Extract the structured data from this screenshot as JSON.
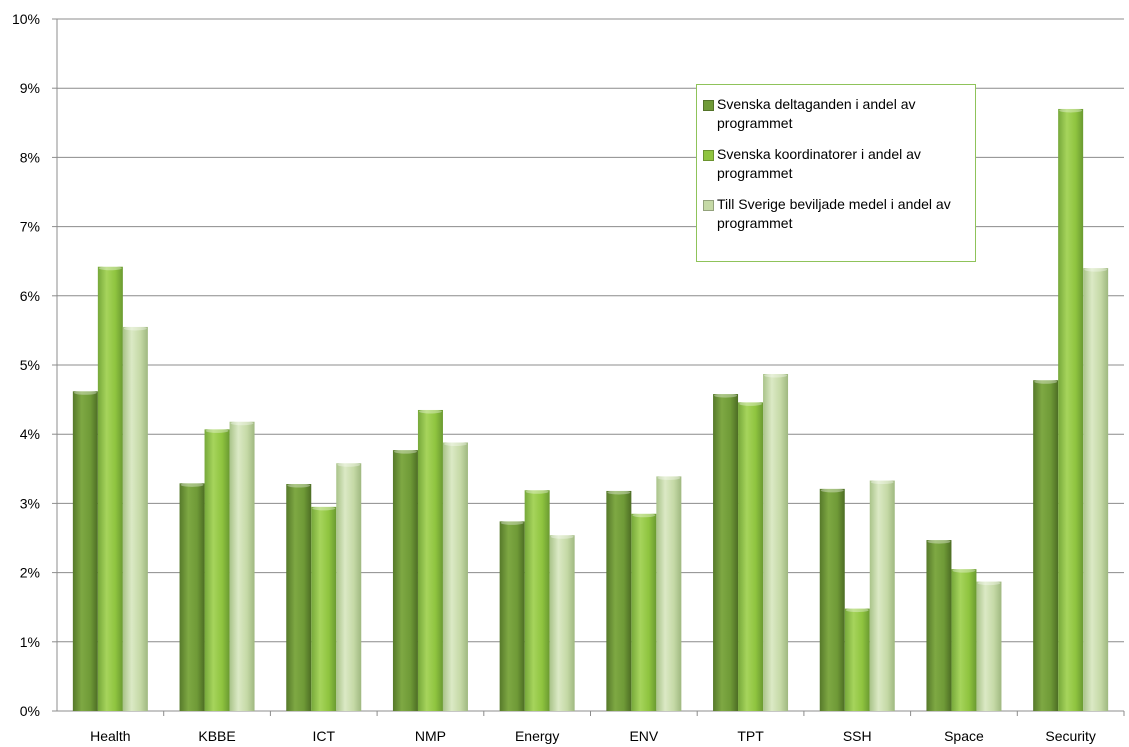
{
  "chart_data": {
    "type": "bar",
    "categories": [
      "Health",
      "KBBE",
      "ICT",
      "NMP",
      "Energy",
      "ENV",
      "TPT",
      "SSH",
      "Space",
      "Security"
    ],
    "series": [
      {
        "name": "Svenska deltaganden i andel av programmet",
        "values": [
          4.62,
          3.29,
          3.28,
          3.77,
          2.74,
          3.18,
          4.58,
          3.21,
          2.47,
          4.78
        ],
        "color": "#6f9a37"
      },
      {
        "name": "Svenska koordinatorer i andel av programmet",
        "values": [
          6.42,
          4.07,
          2.95,
          4.35,
          3.19,
          2.85,
          4.46,
          1.48,
          2.05,
          8.7
        ],
        "color": "#8fc43f"
      },
      {
        "name": "Till Sverige beviljade medel i andel av programmet",
        "values": [
          5.55,
          4.18,
          3.58,
          3.88,
          2.54,
          3.39,
          4.87,
          3.33,
          1.87,
          6.4
        ],
        "color": "#c5d9a6"
      }
    ],
    "yticks": [
      "0%",
      "1%",
      "2%",
      "3%",
      "4%",
      "5%",
      "6%",
      "7%",
      "8%",
      "9%",
      "10%"
    ],
    "ylim": [
      0,
      10
    ],
    "grid": true,
    "legend_position": "top-right",
    "title": "",
    "xlabel": "",
    "ylabel": ""
  }
}
